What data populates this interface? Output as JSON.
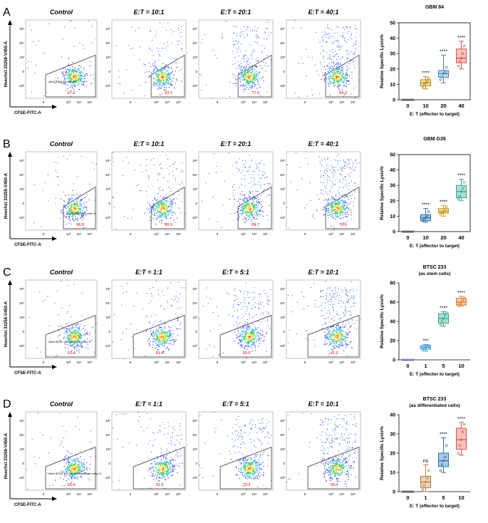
{
  "panels": [
    {
      "letter": "A",
      "plots": [
        {
          "title": "Control",
          "value": "97.2",
          "gate_label": "Alive GBM 84 cells %"
        },
        {
          "title": "E:T = 10:1",
          "value": "83.1"
        },
        {
          "title": "E:T = 20:1",
          "value": "77.9"
        },
        {
          "title": "E:T = 40:1",
          "value": "69.3"
        }
      ],
      "y_axis": "Hoechst 33258-V450-A",
      "x_axis": "CFSE-FITC-A",
      "chart_data": {
        "type": "box",
        "title": "GBM 84",
        "subtitle": "",
        "categories": [
          "0",
          "10",
          "20",
          "40"
        ],
        "ylabel": "Relative Specific Lysis%",
        "xlabel": "E: T (effector to target)",
        "ylim": [
          0,
          50
        ],
        "yticks": [
          "0",
          "10",
          "20",
          "30",
          "40",
          "50"
        ],
        "colors": [
          "#555555",
          "#b8860b",
          "#4a7fb5",
          "#d9534f"
        ],
        "fills": [
          "#ffffff",
          "#f3dfb0",
          "#bcd6ee",
          "#f6c1bb"
        ],
        "boxes": [
          {
            "min": 0,
            "q1": 0,
            "median": 0,
            "q3": 0,
            "max": 0,
            "points": [
              0,
              0,
              0,
              0,
              0
            ]
          },
          {
            "min": 7,
            "q1": 9,
            "median": 11,
            "q3": 13,
            "max": 15,
            "points": [
              8,
              10,
              11,
              12,
              14
            ]
          },
          {
            "min": 11,
            "q1": 14.5,
            "median": 17,
            "q3": 19,
            "max": 29,
            "points": [
              13,
              15,
              17,
              18,
              21
            ]
          },
          {
            "min": 20,
            "q1": 24,
            "median": 27,
            "q3": 33,
            "max": 38,
            "points": [
              22,
              25,
              27,
              30,
              35
            ]
          }
        ],
        "significance": [
          "",
          "****",
          "****",
          "****"
        ]
      }
    },
    {
      "letter": "B",
      "plots": [
        {
          "title": "Control",
          "value": "96.8",
          "gate_label": "Alive GBM G35 cells %"
        },
        {
          "title": "E:T = 10:1",
          "value": "90.9"
        },
        {
          "title": "E:T = 20:1",
          "value": "89.7"
        },
        {
          "title": "E:T = 40:1",
          "value": "76.6"
        }
      ],
      "y_axis": "Hoechst 33258-V450-A",
      "x_axis": "CFSE-FITC-A",
      "chart_data": {
        "type": "box",
        "title": "GBM G35",
        "subtitle": "",
        "categories": [
          "0",
          "10",
          "20",
          "40"
        ],
        "ylabel": "Relative Specific Lysis%",
        "xlabel": "E: T (effector to target)",
        "ylim": [
          0,
          50
        ],
        "yticks": [
          "0",
          "10",
          "20",
          "30",
          "40",
          "50"
        ],
        "colors": [
          "#555555",
          "#2e6f9e",
          "#c99a2e",
          "#3aa190"
        ],
        "fills": [
          "#ffffff",
          "#a9c7e3",
          "#f1d48c",
          "#a9e0d2"
        ],
        "boxes": [
          {
            "min": 0,
            "q1": 0,
            "median": 0,
            "q3": 0,
            "max": 0,
            "points": [
              0,
              0,
              0,
              0,
              0
            ]
          },
          {
            "min": 6,
            "q1": 7,
            "median": 9,
            "q3": 11,
            "max": 15,
            "points": [
              7,
              8,
              9,
              10,
              13
            ]
          },
          {
            "min": 10,
            "q1": 12,
            "median": 13,
            "q3": 15,
            "max": 17,
            "points": [
              11,
              12,
              13,
              14,
              16
            ]
          },
          {
            "min": 20,
            "q1": 22,
            "median": 26,
            "q3": 30,
            "max": 34,
            "points": [
              21,
              23,
              26,
              28,
              32
            ]
          }
        ],
        "significance": [
          "",
          "****",
          "****",
          "****"
        ]
      }
    },
    {
      "letter": "C",
      "plots": [
        {
          "title": "Control",
          "value": "93.4",
          "gate_label": "Alive BTSC 233 (as stem cells) %"
        },
        {
          "title": "E:T = 1:1",
          "value": "81.4"
        },
        {
          "title": "E:T = 5:1",
          "value": "59.5"
        },
        {
          "title": "E:T = 10:1",
          "value": "42.3"
        }
      ],
      "y_axis": "Hoechst 33258-V450-A",
      "x_axis": "CFSE-FITC-A",
      "chart_data": {
        "type": "box",
        "title": "BTSC 233",
        "subtitle": "(as stem cells)",
        "categories": [
          "0",
          "1",
          "5",
          "10"
        ],
        "ylabel": "Relative Specific Lysis%",
        "xlabel": "E: T (effector to target)",
        "ylim": [
          0,
          80
        ],
        "yticks": [
          "0",
          "20",
          "40",
          "60",
          "80"
        ],
        "colors": [
          "#7a6fb5",
          "#3f9fd0",
          "#3aa190",
          "#e07a3a"
        ],
        "fills": [
          "#ffffff",
          "#b4dcef",
          "#a9e0d2",
          "#f8cba8"
        ],
        "boxes": [
          {
            "min": 0,
            "q1": 0,
            "median": 0,
            "q3": 0,
            "max": 0,
            "points": [
              0,
              0,
              0,
              0,
              0
            ]
          },
          {
            "min": 9,
            "q1": 11,
            "median": 13,
            "q3": 15,
            "max": 16,
            "points": [
              10,
              12,
              13,
              14,
              15
            ]
          },
          {
            "min": 35,
            "q1": 38,
            "median": 43,
            "q3": 48,
            "max": 50,
            "points": [
              36,
              40,
              43,
              46,
              49
            ]
          },
          {
            "min": 56,
            "q1": 57,
            "median": 60,
            "q3": 64,
            "max": 66,
            "points": [
              56,
              58,
              60,
              62,
              65
            ]
          }
        ],
        "significance": [
          "",
          "***",
          "****",
          "****"
        ]
      }
    },
    {
      "letter": "D",
      "plots": [
        {
          "title": "Control",
          "value": "95.4",
          "gate_label": "Alive BTSC 233 (as differentiated cells) %"
        },
        {
          "title": "E:T = 1:1",
          "value": "91.9"
        },
        {
          "title": "E:T = 5:1",
          "value": "79.3"
        },
        {
          "title": "E:T = 10:1",
          "value": "59.4"
        }
      ],
      "y_axis": "Hoechst 33258-V450-A",
      "x_axis": "CFSE-FITC-A",
      "chart_data": {
        "type": "box",
        "title": "BTSC 233",
        "subtitle": "(as differentiated cells)",
        "categories": [
          "0",
          "1",
          "5",
          "10"
        ],
        "ylabel": "Relative Specific Lysis%",
        "xlabel": "E: T (effector to target)",
        "ylim": [
          0,
          40
        ],
        "yticks": [
          "0",
          "10",
          "20",
          "30",
          "40"
        ],
        "colors": [
          "#555555",
          "#b57a45",
          "#2e6f9e",
          "#d9534f"
        ],
        "fills": [
          "#ffffff",
          "#ecd0b4",
          "#a9c7e3",
          "#f6c1bb"
        ],
        "boxes": [
          {
            "min": 0,
            "q1": 0,
            "median": 0,
            "q3": 0,
            "max": 0,
            "points": [
              0,
              0,
              0,
              0,
              0
            ]
          },
          {
            "min": 0,
            "q1": 2,
            "median": 5,
            "q3": 8,
            "max": 14,
            "points": [
              1,
              3,
              5,
              7,
              11
            ]
          },
          {
            "min": 10,
            "q1": 13,
            "median": 16,
            "q3": 20,
            "max": 28,
            "points": [
              11,
              14,
              16,
              18,
              24
            ]
          },
          {
            "min": 19,
            "q1": 22,
            "median": 27,
            "q3": 33,
            "max": 36,
            "points": [
              20,
              24,
              27,
              31,
              35
            ]
          }
        ],
        "significance": [
          "",
          "ns",
          "****",
          "****"
        ]
      }
    }
  ]
}
